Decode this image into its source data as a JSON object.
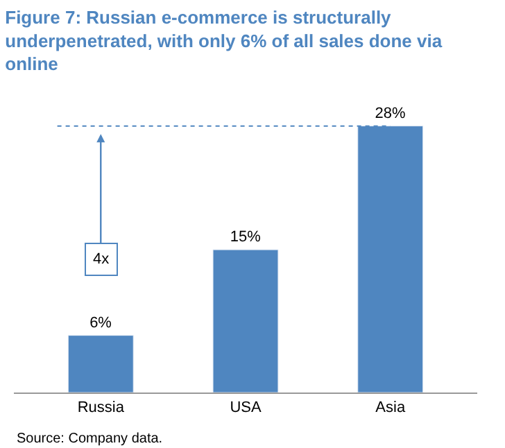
{
  "chart_data": {
    "type": "bar",
    "title": "Figure 7: Russian e-commerce is structurally underpenetrated, with only 6% of all sales done via online",
    "categories": [
      "Russia",
      "USA",
      "Asia"
    ],
    "values": [
      6,
      15,
      28
    ],
    "value_labels": [
      "6%",
      "15%",
      "28%"
    ],
    "color": "#4f86c0",
    "ref_lines": [
      {
        "axis": "y",
        "value": 28,
        "color": "#4f86c0",
        "line_style": "dotted"
      }
    ],
    "annotations": [
      "4x",
      "Source: Company data."
    ],
    "legend": false
  }
}
